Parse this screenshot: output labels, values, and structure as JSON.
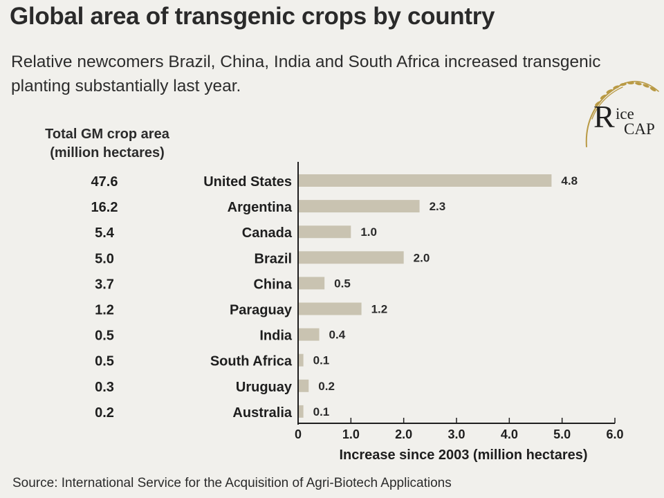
{
  "title": "Global area of transgenic crops by country",
  "subtitle": "Relative newcomers Brazil, China, India and South Africa increased transgenic planting substantially last year.",
  "logo": {
    "text_r": "R",
    "text_ice": "ice",
    "text_cap": "CAP"
  },
  "column_header": [
    "Total GM crop area",
    "(million hectares)"
  ],
  "source": "Source: International Service for the Acquisition of Agri-Biotech Applications",
  "chart_data": {
    "type": "bar",
    "orientation": "horizontal",
    "categories": [
      "United States",
      "Argentina",
      "Canada",
      "Brazil",
      "China",
      "Paraguay",
      "India",
      "South Africa",
      "Uruguay",
      "Australia"
    ],
    "total_area": [
      "47.6",
      "16.2",
      "5.4",
      "5.0",
      "3.7",
      "1.2",
      "0.5",
      "0.5",
      "0.3",
      "0.2"
    ],
    "values": [
      4.8,
      2.3,
      1.0,
      2.0,
      0.5,
      1.2,
      0.4,
      0.1,
      0.2,
      0.1
    ],
    "value_labels": [
      "4.8",
      "2.3",
      "1.0",
      "2.0",
      "0.5",
      "1.2",
      "0.4",
      "0.1",
      "0.2",
      "0.1"
    ],
    "xlabel": "Increase since 2003 (million hectares)",
    "xlim": [
      0,
      6
    ],
    "xticks": [
      "0",
      "1.0",
      "2.0",
      "3.0",
      "4.0",
      "5.0",
      "6.0"
    ],
    "bar_color": "#c9c3b1",
    "grid": false,
    "legend": "none"
  }
}
